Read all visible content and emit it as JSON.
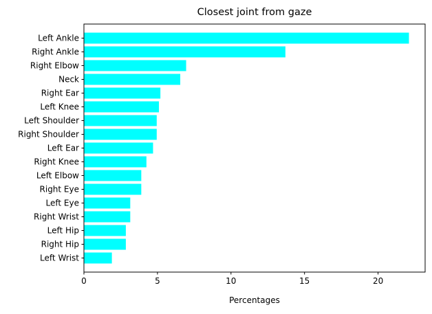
{
  "chart_data": {
    "type": "bar",
    "orientation": "horizontal",
    "title": "Closest joint from gaze",
    "xlabel": "Percentages",
    "ylabel": "",
    "xlim": [
      0,
      23.2
    ],
    "xticks": [
      0,
      5,
      10,
      15,
      20
    ],
    "grid": false,
    "bar_color": "#00ffff",
    "categories": [
      "Left Ankle",
      "Right Ankle",
      "Right Elbow",
      "Neck",
      "Right Ear",
      "Left Knee",
      "Left Shoulder",
      "Right Shoulder",
      "Left Ear",
      "Right Knee",
      "Left Elbow",
      "Right Eye",
      "Left Eye",
      "Right Wrist",
      "Left Hip",
      "Right Hip",
      "Left Wrist"
    ],
    "values": [
      22.1,
      13.7,
      6.95,
      6.55,
      5.2,
      5.1,
      4.95,
      4.95,
      4.7,
      4.25,
      3.9,
      3.9,
      3.15,
      3.15,
      2.85,
      2.85,
      1.9
    ]
  }
}
